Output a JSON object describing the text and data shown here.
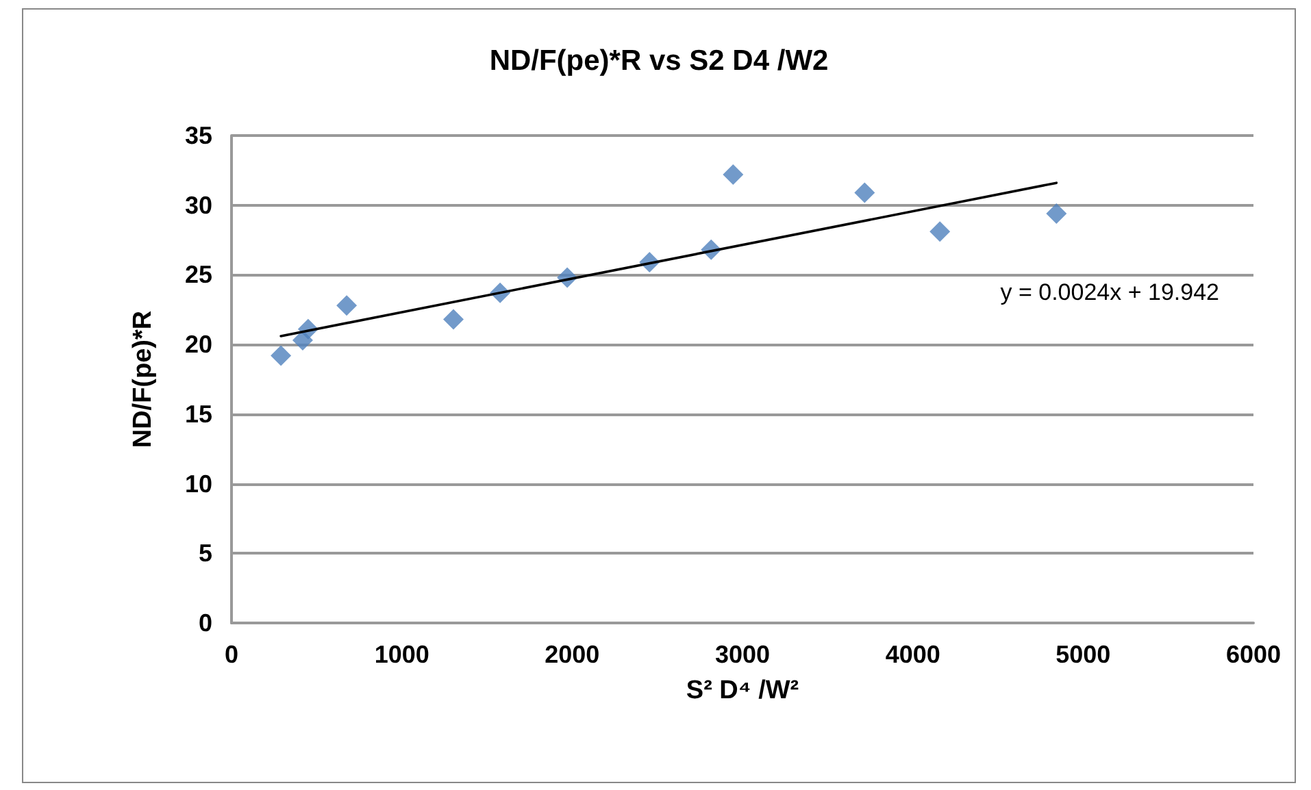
{
  "chart_data": {
    "type": "scatter",
    "title": "ND/F(pe)*R vs S2 D4 /W2",
    "xlabel": "S² D⁴ /W²",
    "ylabel": "ND/F(pe)*R",
    "annotations": [
      "y = 0.0024x + 19.942"
    ],
    "series": [
      {
        "color": "#4f81bd",
        "marker": "diamond",
        "x": [
          290,
          418,
          450,
          676,
          1303,
          1577,
          1971,
          2454,
          2816,
          2945,
          3717,
          4159,
          4843
        ],
        "values": [
          19.2,
          20.3,
          21.1,
          22.8,
          21.8,
          23.7,
          24.8,
          25.9,
          26.8,
          32.2,
          30.9,
          28.1,
          29.4
        ]
      },
      {
        "type": "line",
        "color": "#000000",
        "marker": "none",
        "x": [
          290,
          4843
        ],
        "values": [
          20.6,
          31.6
        ]
      }
    ],
    "xlim": [
      0,
      6000
    ],
    "xticks": [
      0,
      1000,
      2000,
      3000,
      4000,
      5000,
      6000
    ],
    "ylim": [
      0,
      35
    ],
    "yticks": [
      0,
      5,
      10,
      15,
      20,
      25,
      30,
      35
    ],
    "grid": "y"
  }
}
